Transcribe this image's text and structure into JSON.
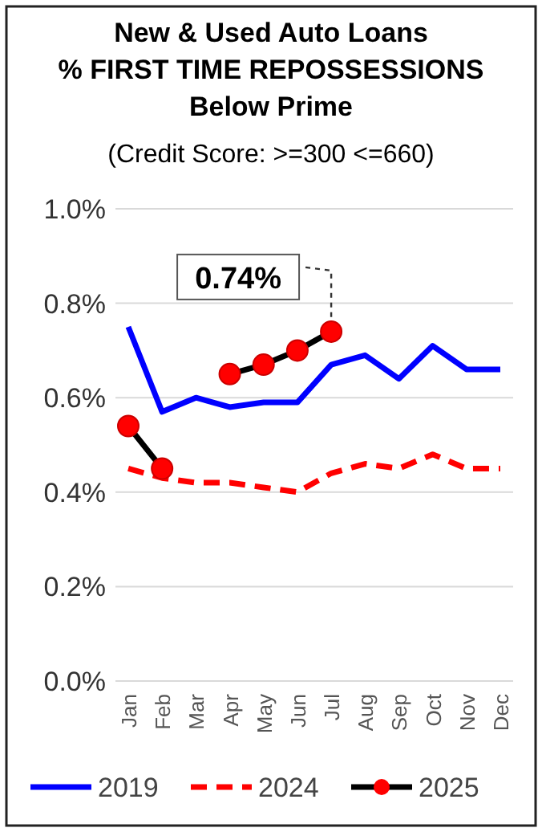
{
  "chart_data": {
    "type": "line",
    "title": "New & Used Auto Loans\n% FIRST TIME REPOSSESSIONS\nBelow Prime",
    "subtitle": "(Credit Score: >=300 <=660)",
    "categories": [
      "Jan",
      "Feb",
      "Mar",
      "Apr",
      "May",
      "Jun",
      "Jul",
      "Aug",
      "Sep",
      "Oct",
      "Nov",
      "Dec"
    ],
    "series": [
      {
        "name": "2019",
        "color": "#0000ff",
        "line_style": "solid",
        "marker": "none",
        "values": [
          0.75,
          0.57,
          0.6,
          0.58,
          0.59,
          0.59,
          0.67,
          0.69,
          0.64,
          0.71,
          0.66,
          0.66
        ]
      },
      {
        "name": "2024",
        "color": "#ff0000",
        "line_style": "dashed",
        "marker": "none",
        "values": [
          0.45,
          0.43,
          0.42,
          0.42,
          0.41,
          0.4,
          0.44,
          0.46,
          0.45,
          0.48,
          0.45,
          0.45
        ]
      },
      {
        "name": "2025",
        "color": "#000000",
        "line_style": "solid",
        "marker": "circle",
        "values": [
          0.54,
          0.45,
          null,
          0.65,
          0.67,
          0.7,
          0.74,
          null,
          null,
          null,
          null,
          null
        ]
      }
    ],
    "ylim": [
      0,
      1
    ],
    "yticks": [
      {
        "value": 0,
        "label": "0.0%"
      },
      {
        "value": 0.2,
        "label": "0.2%"
      },
      {
        "value": 0.4,
        "label": "0.4%"
      },
      {
        "value": 0.6,
        "label": "0.6%"
      },
      {
        "value": 0.8,
        "label": "0.8%"
      },
      {
        "value": 1,
        "label": "1.0%"
      }
    ],
    "grid": "y",
    "legend": "bottom",
    "annotations": [
      {
        "text": "0.74%",
        "x": "Jul",
        "y": 0.74
      }
    ]
  }
}
